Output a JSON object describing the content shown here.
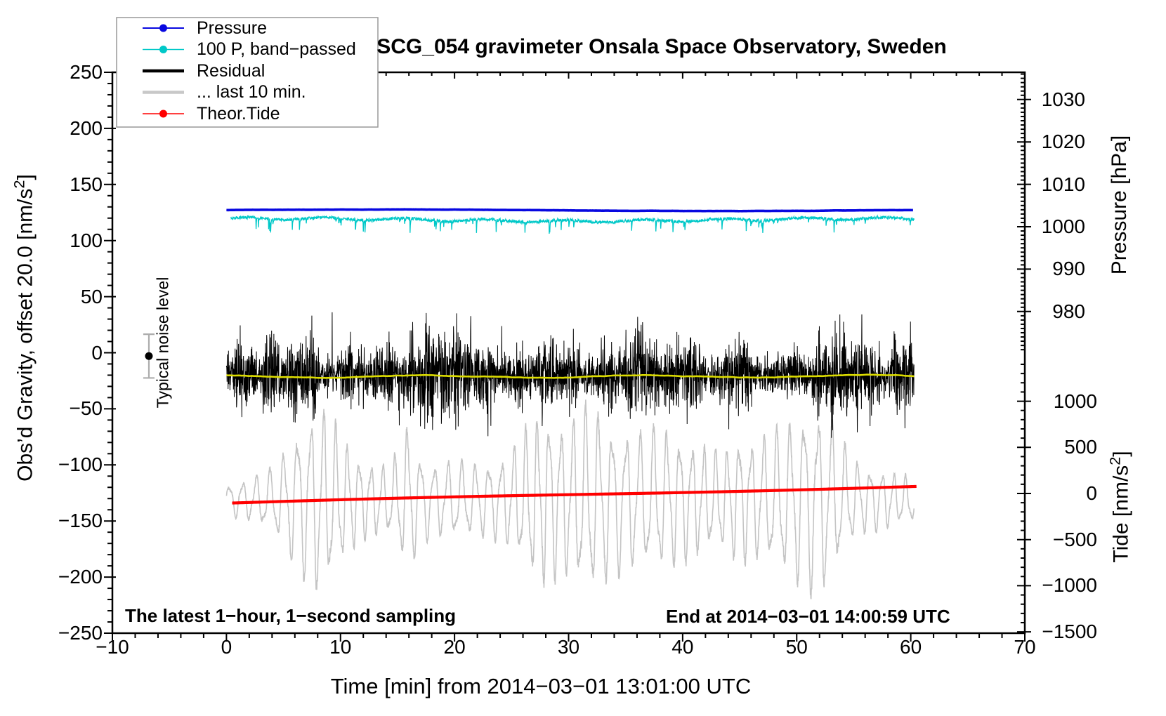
{
  "chart_data": {
    "type": "line",
    "title": "SCG_054 gravimeter Onsala Space Observatory, Sweden",
    "xlabel": "Time [min] from 2014−03−01 13:01:00 UTC",
    "x_axis": {
      "min": -10,
      "max": 70,
      "minor_step": 2,
      "major_step": 10,
      "ticks": [
        {
          "v": -10,
          "label": "−10"
        },
        {
          "v": 0,
          "label": "0"
        },
        {
          "v": 10,
          "label": "10"
        },
        {
          "v": 20,
          "label": "20"
        },
        {
          "v": 30,
          "label": "30"
        },
        {
          "v": 40,
          "label": "40"
        },
        {
          "v": 50,
          "label": "50"
        },
        {
          "v": 60,
          "label": "60"
        },
        {
          "v": 70,
          "label": "70"
        }
      ]
    },
    "left_axis": {
      "label_main": "Obs’d Gravity,  offset 20.0 [nm/s",
      "label_sup": "2",
      "label_close": "]",
      "min": -250,
      "max": 250,
      "minor_step": 10,
      "major_step": 50,
      "ticks": [
        {
          "v": 250,
          "label": "250"
        },
        {
          "v": 200,
          "label": "200"
        },
        {
          "v": 150,
          "label": "150"
        },
        {
          "v": 100,
          "label": "100"
        },
        {
          "v": 50,
          "label": "50"
        },
        {
          "v": 0,
          "label": "0"
        },
        {
          "v": -50,
          "label": "−50"
        },
        {
          "v": -100,
          "label": "−100"
        },
        {
          "v": -150,
          "label": "−150"
        },
        {
          "v": -200,
          "label": "−200"
        },
        {
          "v": -250,
          "label": "−250"
        }
      ]
    },
    "pressure_axis": {
      "label": "Pressure [hPa]",
      "minor_step": 1,
      "major_step": 10,
      "ticks": [
        {
          "v": 1030,
          "label": "1030"
        },
        {
          "v": 1020,
          "label": "1020"
        },
        {
          "v": 1010,
          "label": "1010"
        },
        {
          "v": 1000,
          "label": "1000"
        },
        {
          "v": 990,
          "label": "990"
        },
        {
          "v": 980,
          "label": "980"
        }
      ]
    },
    "tide_axis": {
      "label_main": "Tide [nm/s",
      "label_sup": "2",
      "label_close": "]",
      "minor_step": 100,
      "major_step": 500,
      "ticks": [
        {
          "v": 1000,
          "label": "1000"
        },
        {
          "v": 500,
          "label": "500"
        },
        {
          "v": 0,
          "label": "0"
        },
        {
          "v": -500,
          "label": "−500"
        },
        {
          "v": -1000,
          "label": "−1000"
        },
        {
          "v": -1500,
          "label": "−1500"
        }
      ]
    },
    "legend": {
      "entries": [
        {
          "label": "Pressure",
          "color": "#0808E0",
          "marker": "dot-line",
          "line_width": 2
        },
        {
          "label": "100 P, band−passed",
          "color": "#00C8C8",
          "marker": "dot-line",
          "line_width": 1.5
        },
        {
          "label": "Residual",
          "color": "#000000",
          "marker": "line",
          "line_width": 4.5
        },
        {
          "label": "... last 10 min.",
          "color": "#C8C8C8",
          "marker": "line",
          "line_width": 4.5
        },
        {
          "label": "Theor.Tide",
          "color": "#FF0000",
          "marker": "dot-line",
          "line_width": 1.5
        }
      ]
    },
    "series": [
      {
        "id": "last10",
        "name": "... last 10 min.",
        "color": "#C4C4C4",
        "width": 1.6,
        "kind": "oscillation",
        "center_gravity": -131,
        "period_min": 1.12,
        "x_span": [
          0,
          60.3
        ],
        "envelope": [
          [
            0,
            13
          ],
          [
            2,
            18
          ],
          [
            4,
            26
          ],
          [
            5,
            40
          ],
          [
            6,
            58
          ],
          [
            7,
            68
          ],
          [
            8,
            78
          ],
          [
            9,
            72
          ],
          [
            10,
            55
          ],
          [
            11,
            42
          ],
          [
            12,
            34
          ],
          [
            13,
            30
          ],
          [
            14,
            28
          ],
          [
            15,
            40
          ],
          [
            16,
            66
          ],
          [
            16.7,
            40
          ],
          [
            18,
            30
          ],
          [
            20,
            32
          ],
          [
            22,
            30
          ],
          [
            24,
            34
          ],
          [
            25,
            42
          ],
          [
            26,
            55
          ],
          [
            27,
            68
          ],
          [
            28,
            72
          ],
          [
            29,
            66
          ],
          [
            30,
            64
          ],
          [
            31,
            74
          ],
          [
            32,
            78
          ],
          [
            33,
            70
          ],
          [
            34,
            62
          ],
          [
            35,
            58
          ],
          [
            36,
            55
          ],
          [
            37,
            58
          ],
          [
            38,
            60
          ],
          [
            39,
            55
          ],
          [
            40,
            52
          ],
          [
            41,
            48
          ],
          [
            42,
            44
          ],
          [
            43,
            40
          ],
          [
            44,
            44
          ],
          [
            45,
            54
          ],
          [
            46,
            50
          ],
          [
            47,
            52
          ],
          [
            48,
            58
          ],
          [
            49,
            62
          ],
          [
            50,
            70
          ],
          [
            51,
            78
          ],
          [
            52,
            74
          ],
          [
            53,
            68
          ],
          [
            54,
            48
          ],
          [
            55,
            34
          ],
          [
            56,
            28
          ],
          [
            57,
            26
          ],
          [
            58,
            24
          ],
          [
            59,
            21
          ],
          [
            60.3,
            19
          ]
        ]
      },
      {
        "id": "tide",
        "name": "Theor.Tide",
        "color": "#FF0000",
        "width": 4.2,
        "kind": "trend",
        "start_gravity": -134,
        "end_gravity": -119,
        "start_tide": -100,
        "end_tide": 80,
        "x_span": [
          0.5,
          60.5
        ]
      },
      {
        "id": "bandpassed",
        "name": "100 P, band−passed",
        "color": "#00C8C8",
        "width": 1.3,
        "kind": "spiky",
        "base_gravity": 118.5,
        "spike_depth_max": 28,
        "x_span": [
          0.4,
          60.3
        ]
      },
      {
        "id": "pressure",
        "name": "Pressure",
        "color": "#0808E0",
        "width": 3.6,
        "kind": "flat",
        "level_gravity": 127,
        "level_hpa": 1004,
        "x_span": [
          0,
          60.3
        ]
      },
      {
        "id": "residual",
        "name": "Residual",
        "color": "#000000",
        "width": 1,
        "kind": "noise",
        "center_gravity": -20,
        "typical_range": [
          -100,
          70
        ],
        "x_span": [
          0,
          60.3
        ]
      },
      {
        "id": "smoothed",
        "name": "smoothed residual",
        "color": "#DCDC00",
        "width": 2.6,
        "kind": "smooth",
        "center_gravity": -21,
        "x_span": [
          0,
          60.3
        ]
      }
    ],
    "noise_marker": {
      "label": "Typical noise level",
      "x_min": -6.8,
      "gravity": -3,
      "error": 19.5
    },
    "annotations": {
      "sampling": "The latest 1−hour, 1−second sampling",
      "end": "End at 2014−03−01 14:00:59 UTC"
    }
  }
}
